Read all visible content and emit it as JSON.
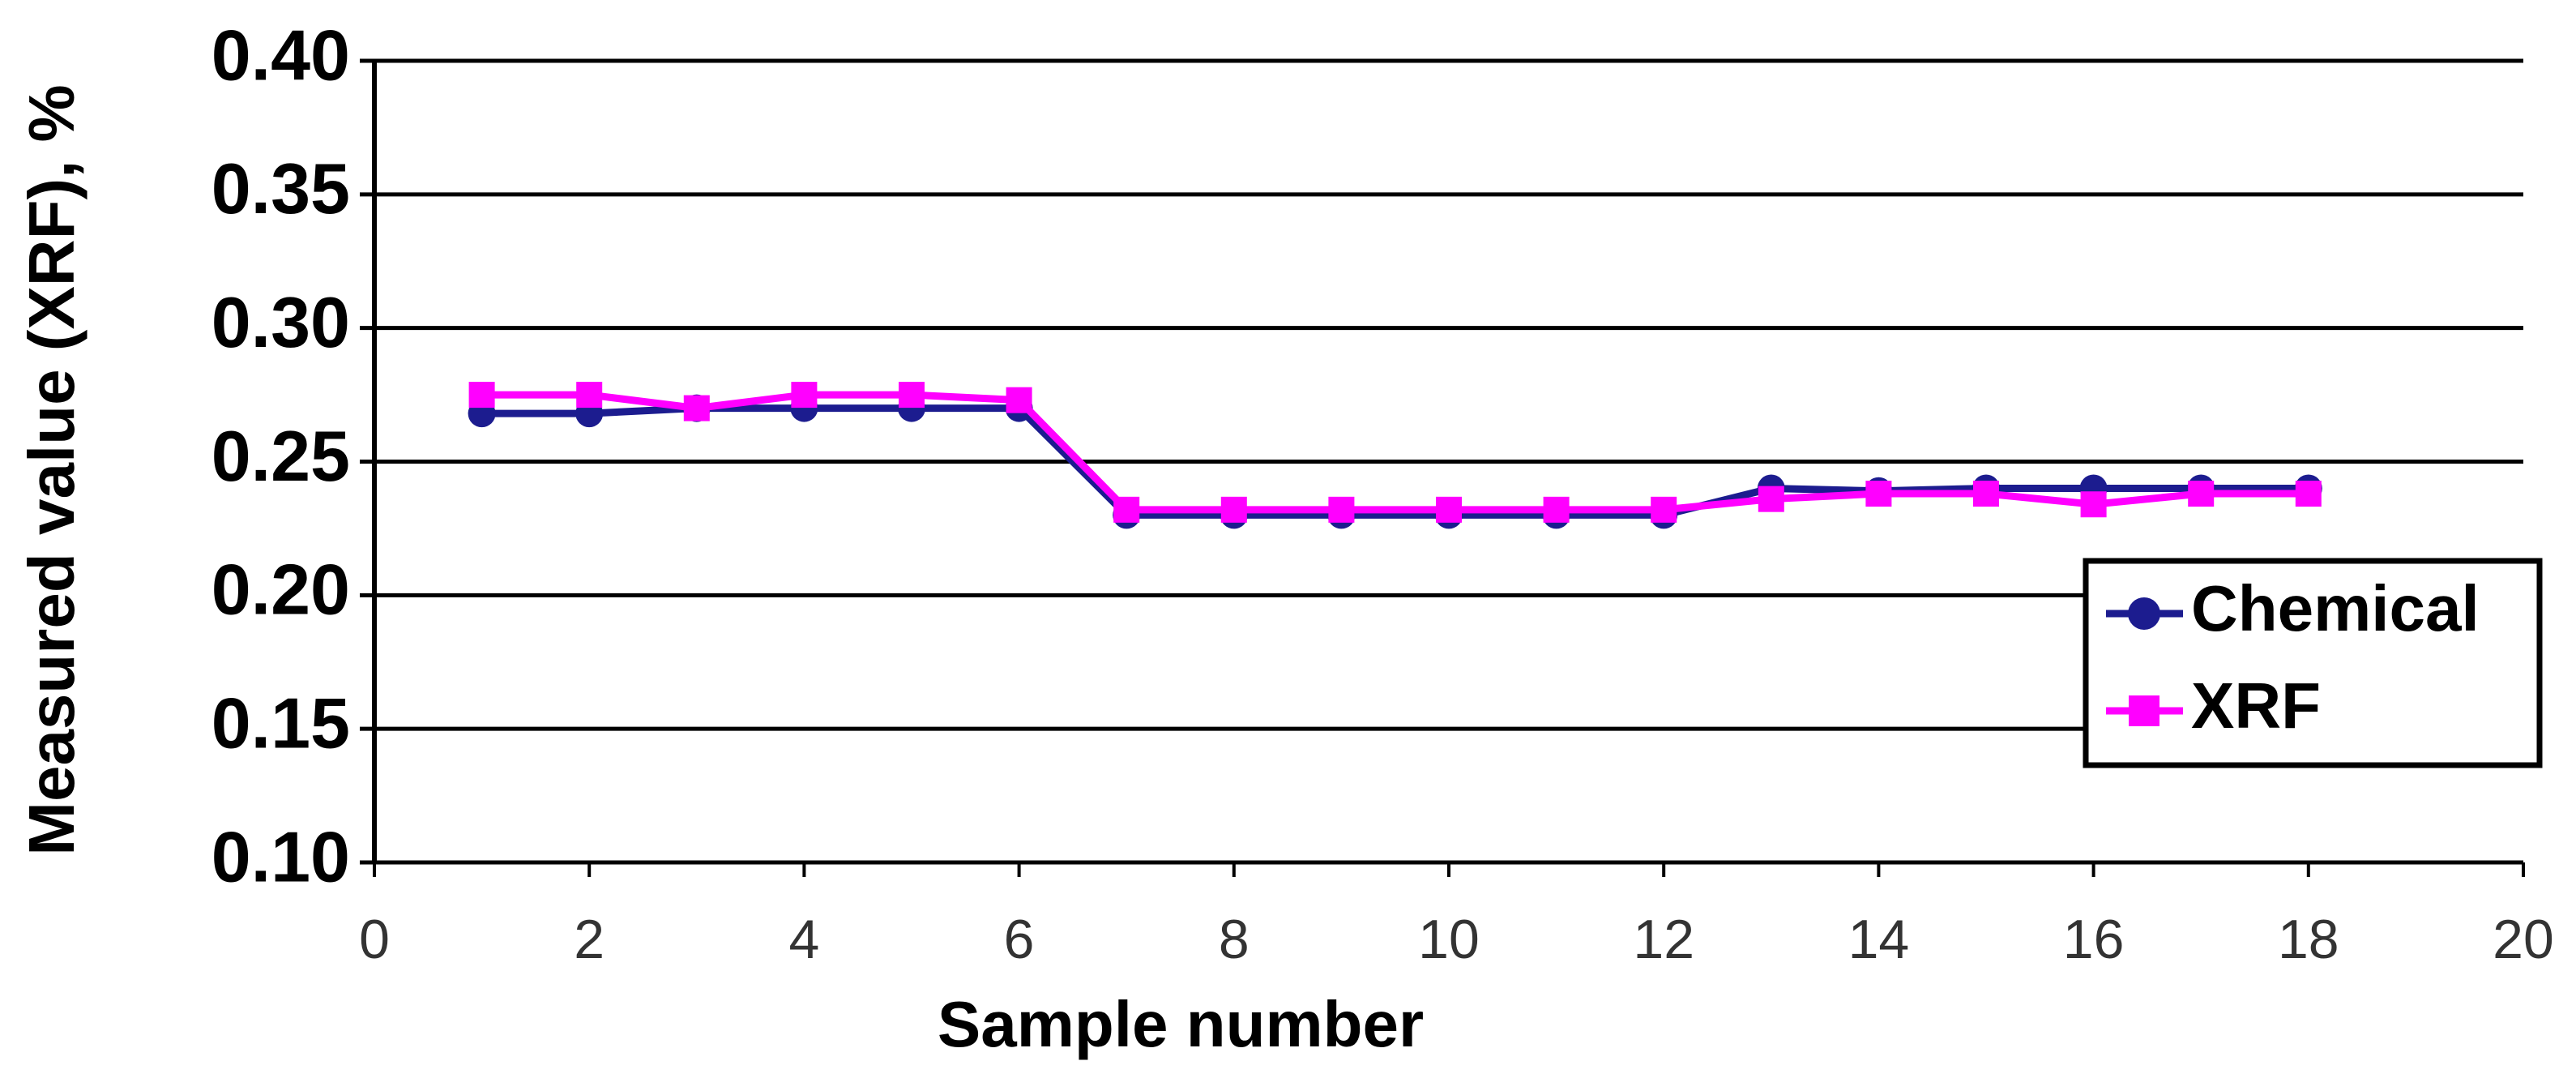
{
  "chart_data": {
    "type": "line",
    "x_label": "Sample number",
    "y_label": "Measured value (XRF), %",
    "xlim": [
      0,
      20
    ],
    "xticks": [
      0,
      2,
      4,
      6,
      8,
      10,
      12,
      14,
      16,
      18,
      20
    ],
    "ylim": [
      0.1,
      0.4
    ],
    "yticks": [
      {
        "value": 0.1,
        "label": "0.10"
      },
      0.15,
      {
        "value": 0.2,
        "label": "0.20"
      },
      0.25,
      {
        "value": 0.3,
        "label": "0.30"
      },
      0.35,
      {
        "value": 0.4,
        "label": "0.40"
      }
    ],
    "grid": true,
    "legend": "lower right",
    "x": [
      1,
      2,
      3,
      4,
      5,
      6,
      7,
      8,
      9,
      10,
      11,
      12,
      13,
      14,
      15,
      16,
      17,
      18
    ],
    "series": [
      {
        "name": "Chemical",
        "color": "#1c1c8f",
        "marker": "circle",
        "values": [
          0.268,
          0.268,
          0.27,
          0.27,
          0.27,
          0.27,
          0.23,
          0.23,
          0.23,
          0.23,
          0.23,
          0.23,
          0.24,
          0.239,
          0.24,
          0.24,
          0.24,
          0.24
        ]
      },
      {
        "name": "XRF",
        "color": "#ff00ff",
        "marker": "square",
        "values": [
          0.275,
          0.275,
          0.27,
          0.275,
          0.275,
          0.273,
          0.232,
          0.232,
          0.232,
          0.232,
          0.232,
          0.232,
          0.236,
          0.238,
          0.238,
          0.234,
          0.238,
          0.238
        ]
      }
    ]
  }
}
